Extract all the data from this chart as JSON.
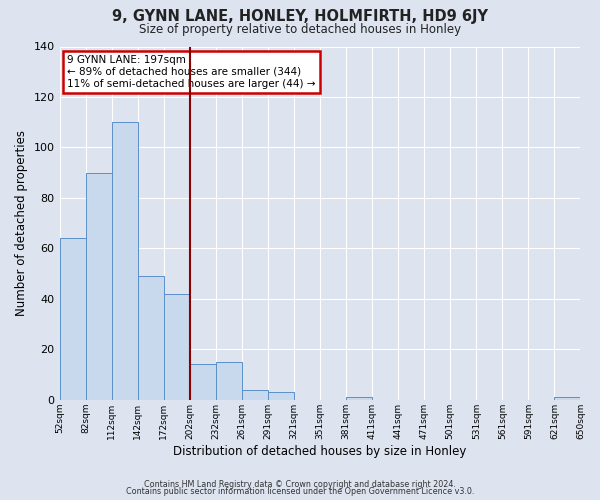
{
  "title": "9, GYNN LANE, HONLEY, HOLMFIRTH, HD9 6JY",
  "subtitle": "Size of property relative to detached houses in Honley",
  "xlabel": "Distribution of detached houses by size in Honley",
  "ylabel": "Number of detached properties",
  "bin_labels": [
    "52sqm",
    "82sqm",
    "112sqm",
    "142sqm",
    "172sqm",
    "202sqm",
    "232sqm",
    "261sqm",
    "291sqm",
    "321sqm",
    "351sqm",
    "381sqm",
    "411sqm",
    "441sqm",
    "471sqm",
    "501sqm",
    "531sqm",
    "561sqm",
    "591sqm",
    "621sqm",
    "650sqm"
  ],
  "bar_heights": [
    64,
    90,
    110,
    49,
    42,
    14,
    15,
    4,
    3,
    0,
    0,
    1,
    0,
    0,
    0,
    0,
    0,
    0,
    0,
    1
  ],
  "bar_color": "#c8d9ee",
  "bar_edge_color": "#5b8fc9",
  "vline_index": 5,
  "vline_color": "#8b0000",
  "annotation_text": "9 GYNN LANE: 197sqm\n← 89% of detached houses are smaller (344)\n11% of semi-detached houses are larger (44) →",
  "annotation_box_color": "#ffffff",
  "annotation_box_edge_color": "#cc0000",
  "ylim": [
    0,
    140
  ],
  "background_color": "#dde4f0",
  "grid_color": "#ffffff",
  "footer_line1": "Contains HM Land Registry data © Crown copyright and database right 2024.",
  "footer_line2": "Contains public sector information licensed under the Open Government Licence v3.0."
}
